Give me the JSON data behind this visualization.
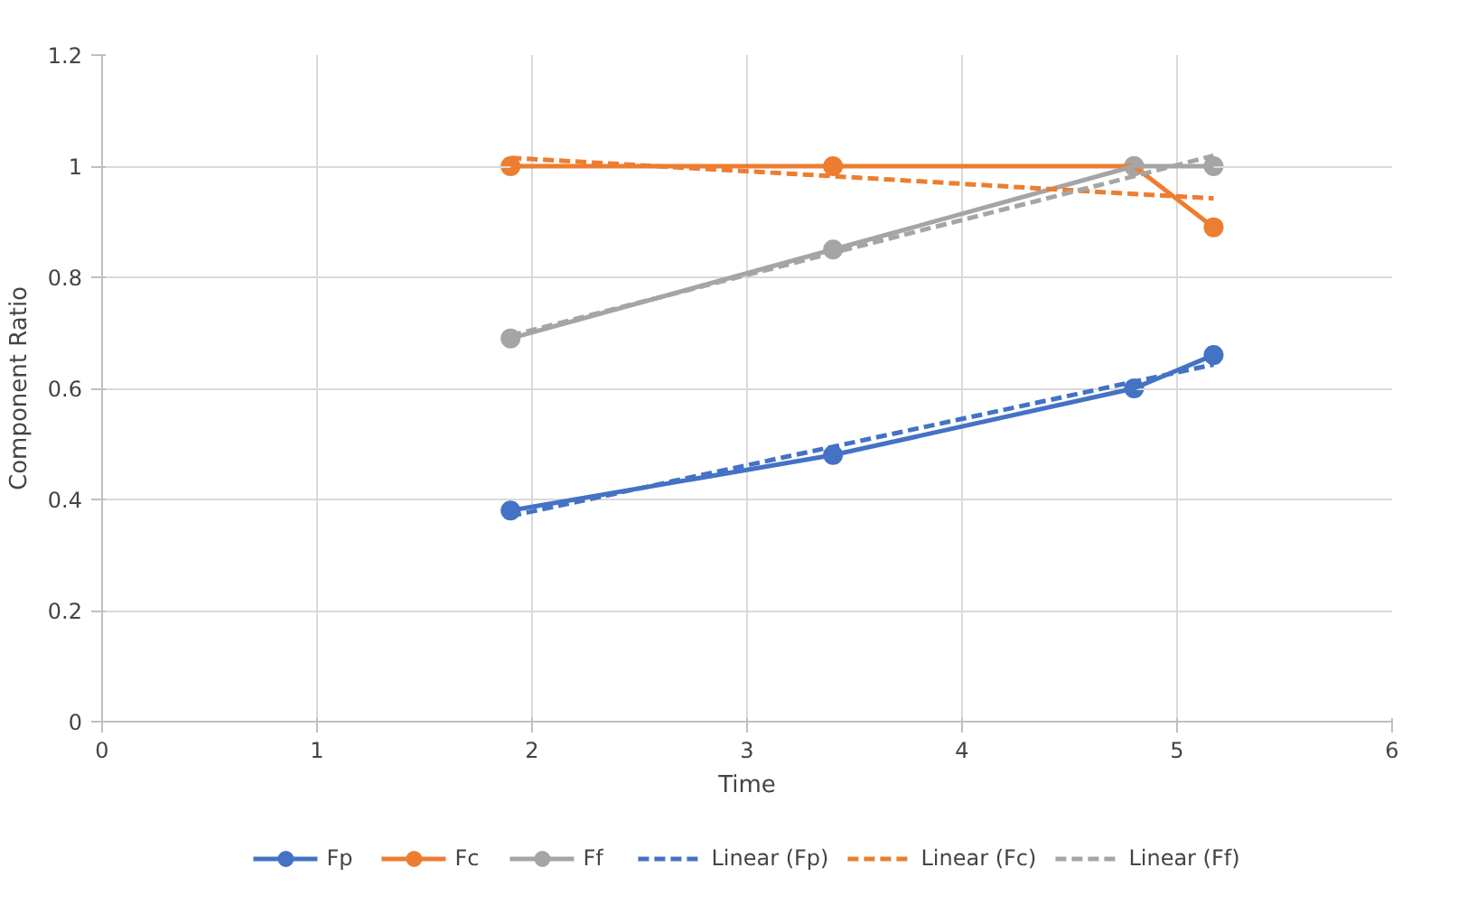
{
  "chart_data": {
    "type": "line",
    "xlabel": "Time",
    "ylabel": "Component Ratio",
    "x": [
      1.9,
      3.4,
      4.8,
      5.17
    ],
    "series": [
      {
        "name": "Fp",
        "color": "#4472c4",
        "values": [
          0.38,
          0.48,
          0.6,
          0.66
        ],
        "marker": "circle",
        "line_style": "solid"
      },
      {
        "name": "Fc",
        "color": "#ed7d31",
        "values": [
          1.0,
          1.0,
          1.0,
          0.89
        ],
        "marker": "circle",
        "line_style": "solid"
      },
      {
        "name": "Ff",
        "color": "#a5a5a5",
        "values": [
          0.69,
          0.85,
          1.0,
          1.0
        ],
        "marker": "circle",
        "line_style": "solid"
      },
      {
        "name": "Linear (Fp)",
        "color": "#4472c4",
        "values": [
          0.37,
          0.495,
          0.612,
          0.643
        ],
        "marker": "none",
        "line_style": "dashed"
      },
      {
        "name": "Linear (Fc)",
        "color": "#ed7d31",
        "values": [
          1.015,
          0.982,
          0.95,
          0.942
        ],
        "marker": "none",
        "line_style": "dashed"
      },
      {
        "name": "Linear (Ff)",
        "color": "#a5a5a5",
        "values": [
          0.695,
          0.844,
          0.982,
          1.019
        ],
        "marker": "none",
        "line_style": "dashed"
      }
    ],
    "xlim": [
      0,
      6
    ],
    "xticks": [
      0,
      1,
      2,
      3,
      4,
      5,
      6
    ],
    "ylim": [
      0,
      1.2
    ],
    "yticks": [
      {
        "value": 0,
        "label": "0"
      },
      {
        "value": 0.2,
        "label": "0.2"
      },
      {
        "value": 0.4,
        "label": "0.4"
      },
      {
        "value": 0.6,
        "label": "0.6"
      },
      {
        "value": 0.8,
        "label": "0.8"
      },
      {
        "value": 1,
        "label": "1"
      },
      {
        "value": 1.2,
        "label": "1.2"
      }
    ],
    "grid": true,
    "legend": "bottom"
  }
}
